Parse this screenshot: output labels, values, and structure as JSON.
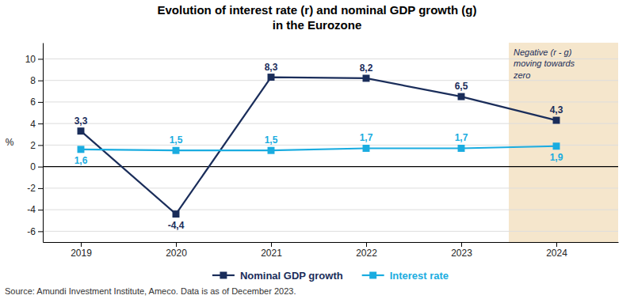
{
  "chart_data": {
    "type": "line",
    "title": "Evolution of interest rate (r) and nominal GDP growth (g)",
    "subtitle": "in the Eurozone",
    "y_label": "%",
    "x": [
      2019,
      2020,
      2021,
      2022,
      2023,
      2024
    ],
    "xlim": [
      2018.6,
      2024.65
    ],
    "xticks": [
      2019,
      2020,
      2021,
      2022,
      2023,
      2024
    ],
    "ylim": [
      -7,
      11.5
    ],
    "yticks": [
      -6,
      -4,
      -2,
      0,
      2,
      4,
      6,
      8,
      10
    ],
    "grid": "y",
    "legend": "bottom",
    "data_labels": true,
    "series": [
      {
        "name": "Nominal GDP growth",
        "color": "#1a2d5a",
        "marker": "square",
        "values": [
          3.3,
          -4.4,
          8.3,
          8.2,
          6.5,
          4.3
        ],
        "value_labels": [
          "3,3",
          "-4,4",
          "8,3",
          "8,2",
          "6,5",
          "4,3"
        ]
      },
      {
        "name": "Interest rate",
        "color": "#1aace0",
        "marker": "square",
        "values": [
          1.6,
          1.5,
          1.5,
          1.7,
          1.7,
          1.9
        ],
        "value_labels": [
          "1,6",
          "1,5",
          "1,5",
          "1,7",
          "1,7",
          "1,9"
        ]
      }
    ],
    "annotations": [
      {
        "text": "Negative (r - g)\nmoving towards\nzero",
        "x_range": [
          2023.5,
          2024.65
        ],
        "color": "#f5e6cc"
      }
    ],
    "source": "Source: Amundi Investment Institute, Ameco. Data is as of December 2023."
  }
}
